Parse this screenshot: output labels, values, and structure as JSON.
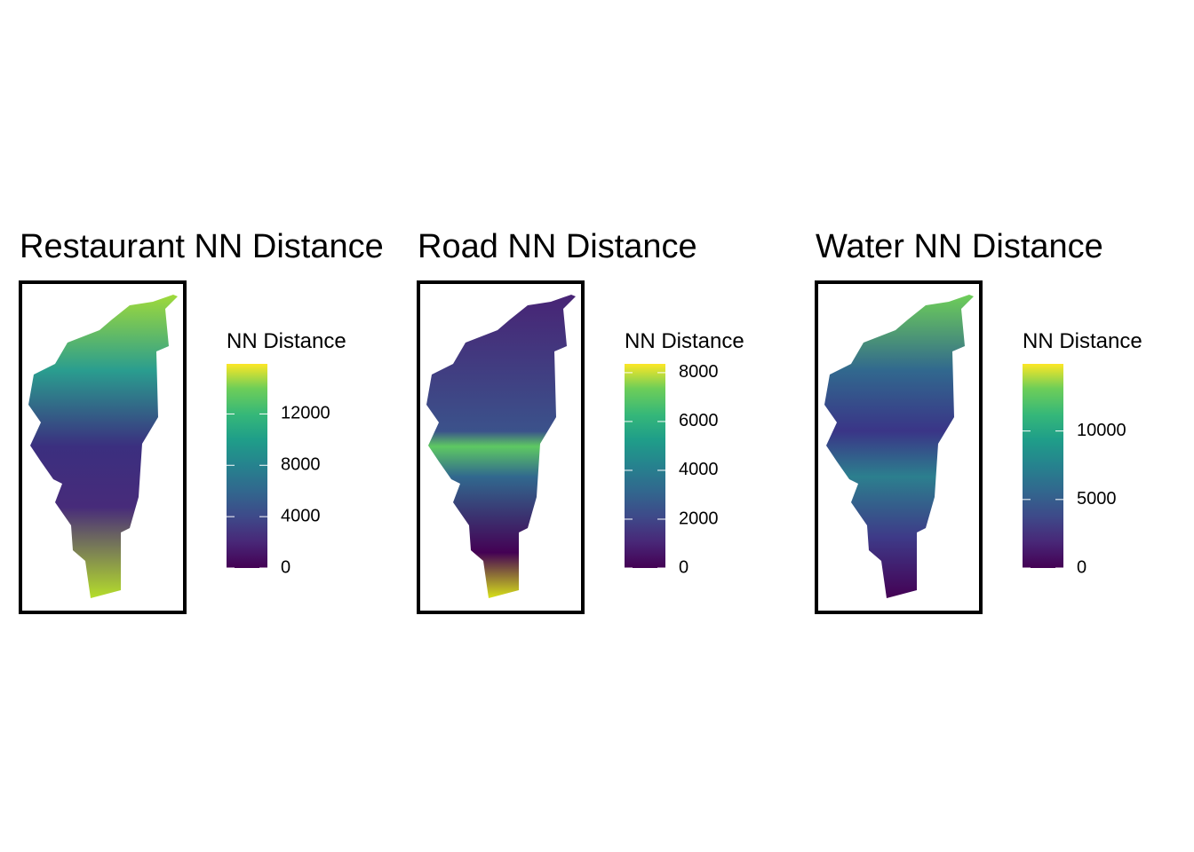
{
  "panels": [
    {
      "title": "Restaurant NN Distance",
      "legend": {
        "title": "NN Distance",
        "lim": [
          0,
          15900
        ],
        "ticks": [
          0,
          4000,
          8000,
          12000
        ]
      }
    },
    {
      "title": "Road NN Distance",
      "legend": {
        "title": "NN Distance",
        "lim": [
          0,
          8360
        ],
        "ticks": [
          0,
          2000,
          4000,
          6000,
          8000
        ]
      }
    },
    {
      "title": "Water NN Distance",
      "legend": {
        "title": "NN Distance",
        "lim": [
          0,
          14900
        ],
        "ticks": [
          0,
          5000,
          10000
        ]
      }
    }
  ]
}
